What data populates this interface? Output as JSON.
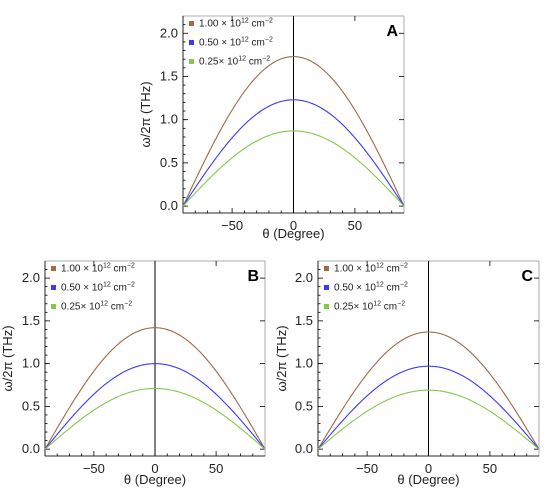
{
  "colors": {
    "series_1": "#a0694a",
    "series_2": "#3a3aff",
    "series_3": "#86c84c"
  },
  "chart_data": [
    {
      "type": "line",
      "panel_label": "A",
      "xlabel": "θ (Degree)",
      "ylabel": "ω/2π (THz)",
      "xlim": [
        -90,
        90
      ],
      "ylim": [
        -0.08,
        2.2
      ],
      "xticks": [
        -50,
        0,
        50
      ],
      "yticks": [
        0.0,
        0.5,
        1.0,
        1.5,
        2.0
      ],
      "ytick_labels": [
        "0.0",
        "0.5",
        "1.0",
        "1.5",
        "2.0"
      ],
      "legend_position": "top-left",
      "series": [
        {
          "name_base": "1.00 × 10",
          "name_exp": "12",
          "name_unit": " cm",
          "name_unit_exp": "−2",
          "color_key": "series_1",
          "peak": 1.73,
          "values_at_x": {
            "-90": 0.0,
            "-50": 1.11,
            "0": 1.73,
            "50": 1.11,
            "90": 0.0
          }
        },
        {
          "name_base": "0.50 × 10",
          "name_exp": "12",
          "name_unit": " cm",
          "name_unit_exp": "−2",
          "color_key": "series_2",
          "peak": 1.23,
          "values_at_x": {
            "-90": 0.0,
            "-50": 0.79,
            "0": 1.23,
            "50": 0.79,
            "90": 0.0
          }
        },
        {
          "name_base": "0.25× 10",
          "name_exp": "12",
          "name_unit": " cm",
          "name_unit_exp": "−2",
          "color_key": "series_3",
          "peak": 0.87,
          "values_at_x": {
            "-90": 0.0,
            "-50": 0.56,
            "0": 0.87,
            "50": 0.56,
            "90": 0.0
          }
        }
      ]
    },
    {
      "type": "line",
      "panel_label": "B",
      "xlabel": "θ (Degree)",
      "ylabel": "ω/2π (THz)",
      "xlim": [
        -90,
        90
      ],
      "ylim": [
        -0.08,
        2.2
      ],
      "xticks": [
        -50,
        0,
        50
      ],
      "yticks": [
        0.0,
        0.5,
        1.0,
        1.5,
        2.0
      ],
      "ytick_labels": [
        "0.0",
        "0.5",
        "1.0",
        "1.5",
        "2.0"
      ],
      "legend_position": "top-left",
      "series": [
        {
          "name_base": "1.00 × 10",
          "name_exp": "12",
          "name_unit": " cm",
          "name_unit_exp": "−2",
          "color_key": "series_1",
          "peak": 1.42,
          "values_at_x": {
            "-90": 0.0,
            "-50": 0.91,
            "0": 1.42,
            "50": 0.91,
            "90": 0.0
          }
        },
        {
          "name_base": "0.50 × 10",
          "name_exp": "12",
          "name_unit": " cm",
          "name_unit_exp": "−2",
          "color_key": "series_2",
          "peak": 1.0,
          "values_at_x": {
            "-90": 0.0,
            "-50": 0.64,
            "0": 1.0,
            "50": 0.64,
            "90": 0.0
          }
        },
        {
          "name_base": "0.25× 10",
          "name_exp": "12",
          "name_unit": " cm",
          "name_unit_exp": "−2",
          "color_key": "series_3",
          "peak": 0.71,
          "values_at_x": {
            "-90": 0.0,
            "-50": 0.46,
            "0": 0.71,
            "50": 0.46,
            "90": 0.0
          }
        }
      ]
    },
    {
      "type": "line",
      "panel_label": "C",
      "xlabel": "θ (Degree)",
      "ylabel": "ω/2π (THz)",
      "xlim": [
        -90,
        90
      ],
      "ylim": [
        -0.08,
        2.2
      ],
      "xticks": [
        -50,
        0,
        50
      ],
      "yticks": [
        0.0,
        0.5,
        1.0,
        1.5,
        2.0
      ],
      "ytick_labels": [
        "0.0",
        "0.5",
        "1.0",
        "1.5",
        "2.0"
      ],
      "legend_position": "top-left",
      "series": [
        {
          "name_base": "1.00 × 10",
          "name_exp": "12",
          "name_unit": " cm",
          "name_unit_exp": "−2",
          "color_key": "series_1",
          "peak": 1.37,
          "values_at_x": {
            "-90": 0.0,
            "-50": 0.88,
            "0": 1.37,
            "50": 0.88,
            "90": 0.0
          }
        },
        {
          "name_base": "0.50 × 10",
          "name_exp": "12",
          "name_unit": " cm",
          "name_unit_exp": "−2",
          "color_key": "series_2",
          "peak": 0.97,
          "values_at_x": {
            "-90": 0.0,
            "-50": 0.62,
            "0": 0.97,
            "50": 0.62,
            "90": 0.0
          }
        },
        {
          "name_base": "0.25× 10",
          "name_exp": "12",
          "name_unit": " cm",
          "name_unit_exp": "−2",
          "color_key": "series_3",
          "peak": 0.69,
          "values_at_x": {
            "-90": 0.0,
            "-50": 0.44,
            "0": 0.69,
            "50": 0.44,
            "90": 0.0
          }
        }
      ]
    }
  ]
}
